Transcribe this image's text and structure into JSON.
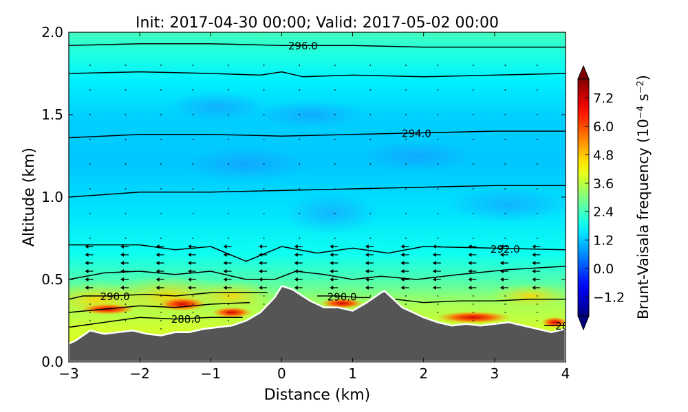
{
  "chart_data": {
    "type": "heatmap",
    "title": "Init: 2017-04-30 00:00; Valid: 2017-05-02 00:00",
    "xlabel": "Distance (km)",
    "ylabel": "Altitude (km)",
    "xlim": [
      -3,
      4
    ],
    "ylim": [
      0,
      2
    ],
    "x_ticks": [
      -3,
      -2,
      -1,
      0,
      1,
      2,
      3,
      4
    ],
    "y_ticks": [
      0.0,
      0.5,
      1.0,
      1.5,
      2.0
    ],
    "x_tick_labels": [
      "−3",
      "−2",
      "−1",
      "0",
      "1",
      "2",
      "3",
      "4"
    ],
    "y_tick_labels": [
      "0.0",
      "0.5",
      "1.0",
      "1.5",
      "2.0"
    ],
    "colorbar": {
      "label": "Brunt-Vaisala frequency (10",
      "label_exponent": "−4",
      "label_unit": " s",
      "label_unit_exponent": "−2",
      "label_close": ")",
      "range": [
        -2.0,
        8.0
      ],
      "ticks": [
        -1.2,
        0.0,
        1.2,
        2.4,
        3.6,
        4.8,
        6.0,
        7.2
      ],
      "tick_labels": [
        "−1.2",
        "0.0",
        "1.2",
        "2.4",
        "3.6",
        "4.8",
        "6.0",
        "7.2"
      ],
      "colormap": "jet",
      "extend": "both"
    },
    "terrain": {
      "x": [
        -3.0,
        -2.9,
        -2.7,
        -2.5,
        -2.3,
        -2.1,
        -1.9,
        -1.7,
        -1.5,
        -1.3,
        -1.1,
        -0.9,
        -0.7,
        -0.5,
        -0.3,
        -0.1,
        0.0,
        0.15,
        0.4,
        0.6,
        0.8,
        1.0,
        1.2,
        1.4,
        1.45,
        1.7,
        2.0,
        2.2,
        2.4,
        2.6,
        2.8,
        3.0,
        3.2,
        3.4,
        3.6,
        3.8,
        4.0
      ],
      "altitude": [
        0.11,
        0.13,
        0.19,
        0.17,
        0.18,
        0.19,
        0.17,
        0.16,
        0.18,
        0.18,
        0.2,
        0.21,
        0.22,
        0.25,
        0.3,
        0.39,
        0.46,
        0.44,
        0.37,
        0.33,
        0.33,
        0.31,
        0.36,
        0.42,
        0.43,
        0.33,
        0.27,
        0.24,
        0.22,
        0.23,
        0.22,
        0.23,
        0.24,
        0.22,
        0.2,
        0.18,
        0.2
      ],
      "color": "#555555",
      "outline_color": "#ffffff"
    },
    "theta_contours": [
      {
        "label": "296.0",
        "label_x": 0.3,
        "points": [
          [
            -3,
            1.92
          ],
          [
            -2,
            1.93
          ],
          [
            -1,
            1.93
          ],
          [
            0,
            1.92
          ],
          [
            1,
            1.92
          ],
          [
            2,
            1.91
          ],
          [
            3,
            1.91
          ],
          [
            4,
            1.91
          ]
        ]
      },
      {
        "label": "",
        "points": [
          [
            -3,
            1.75
          ],
          [
            -2,
            1.76
          ],
          [
            -1,
            1.75
          ],
          [
            -0.3,
            1.74
          ],
          [
            0,
            1.76
          ],
          [
            0.3,
            1.73
          ],
          [
            1,
            1.74
          ],
          [
            2,
            1.73
          ],
          [
            3,
            1.74
          ],
          [
            4,
            1.75
          ]
        ]
      },
      {
        "label": "294.0",
        "label_x": 1.9,
        "points": [
          [
            -3,
            1.36
          ],
          [
            -2,
            1.38
          ],
          [
            -1,
            1.38
          ],
          [
            0,
            1.37
          ],
          [
            1,
            1.38
          ],
          [
            2,
            1.39
          ],
          [
            3,
            1.4
          ],
          [
            4,
            1.4
          ]
        ]
      },
      {
        "label": "",
        "points": [
          [
            -3,
            1.0
          ],
          [
            -2,
            1.03
          ],
          [
            -1,
            1.03
          ],
          [
            0,
            1.04
          ],
          [
            1,
            1.05
          ],
          [
            2,
            1.06
          ],
          [
            3,
            1.07
          ],
          [
            4,
            1.07
          ]
        ]
      },
      {
        "label": "292.0",
        "label_x": 3.15,
        "points": [
          [
            -3,
            0.71
          ],
          [
            -2,
            0.71
          ],
          [
            -1.5,
            0.68
          ],
          [
            -1,
            0.7
          ],
          [
            -0.5,
            0.61
          ],
          [
            0,
            0.7
          ],
          [
            0.5,
            0.66
          ],
          [
            1,
            0.69
          ],
          [
            1.5,
            0.66
          ],
          [
            2,
            0.7
          ],
          [
            3,
            0.69
          ],
          [
            4,
            0.68
          ]
        ]
      },
      {
        "label": "",
        "points": [
          [
            -3,
            0.5
          ],
          [
            -2.5,
            0.54
          ],
          [
            -2,
            0.55
          ],
          [
            -1.5,
            0.53
          ],
          [
            -1,
            0.55
          ],
          [
            -0.5,
            0.5
          ],
          [
            -0.1,
            0.5
          ],
          [
            0.2,
            0.55
          ],
          [
            0.6,
            0.53
          ],
          [
            1,
            0.5
          ],
          [
            1.4,
            0.52
          ],
          [
            1.9,
            0.5
          ],
          [
            2.5,
            0.53
          ],
          [
            3.2,
            0.56
          ],
          [
            4,
            0.58
          ]
        ]
      },
      {
        "label": "290.0",
        "label_x": -2.35,
        "points": [
          [
            -3,
            0.38
          ],
          [
            -2.8,
            0.4
          ],
          [
            -2.4,
            0.4
          ],
          [
            -1.9,
            0.41
          ],
          [
            -1.5,
            0.4
          ],
          [
            -1,
            0.42
          ],
          [
            -0.5,
            0.42
          ],
          [
            -0.2,
            0.42
          ]
        ]
      },
      {
        "label": "290.0",
        "label_x": 0.85,
        "points": [
          [
            0.5,
            0.4
          ],
          [
            0.8,
            0.4
          ],
          [
            1.1,
            0.39
          ],
          [
            1.25,
            0.39
          ]
        ]
      },
      {
        "label": "",
        "points": [
          [
            1.6,
            0.38
          ],
          [
            2,
            0.36
          ],
          [
            2.5,
            0.37
          ],
          [
            3,
            0.37
          ],
          [
            3.5,
            0.38
          ],
          [
            4,
            0.38
          ]
        ]
      },
      {
        "label": "",
        "points": [
          [
            -3,
            0.3
          ],
          [
            -2.5,
            0.32
          ],
          [
            -2,
            0.34
          ],
          [
            -1.5,
            0.33
          ],
          [
            -1,
            0.35
          ],
          [
            -0.45,
            0.36
          ]
        ]
      },
      {
        "label": "288.0",
        "label_x": -1.35,
        "points": [
          [
            -3,
            0.21
          ],
          [
            -2.5,
            0.24
          ],
          [
            -2,
            0.27
          ],
          [
            -1.5,
            0.26
          ],
          [
            -1,
            0.27
          ],
          [
            -0.55,
            0.27
          ]
        ]
      },
      {
        "label": "28",
        "label_x": 3.95,
        "points": [
          [
            3.7,
            0.22
          ],
          [
            4,
            0.22
          ]
        ]
      }
    ]
  }
}
